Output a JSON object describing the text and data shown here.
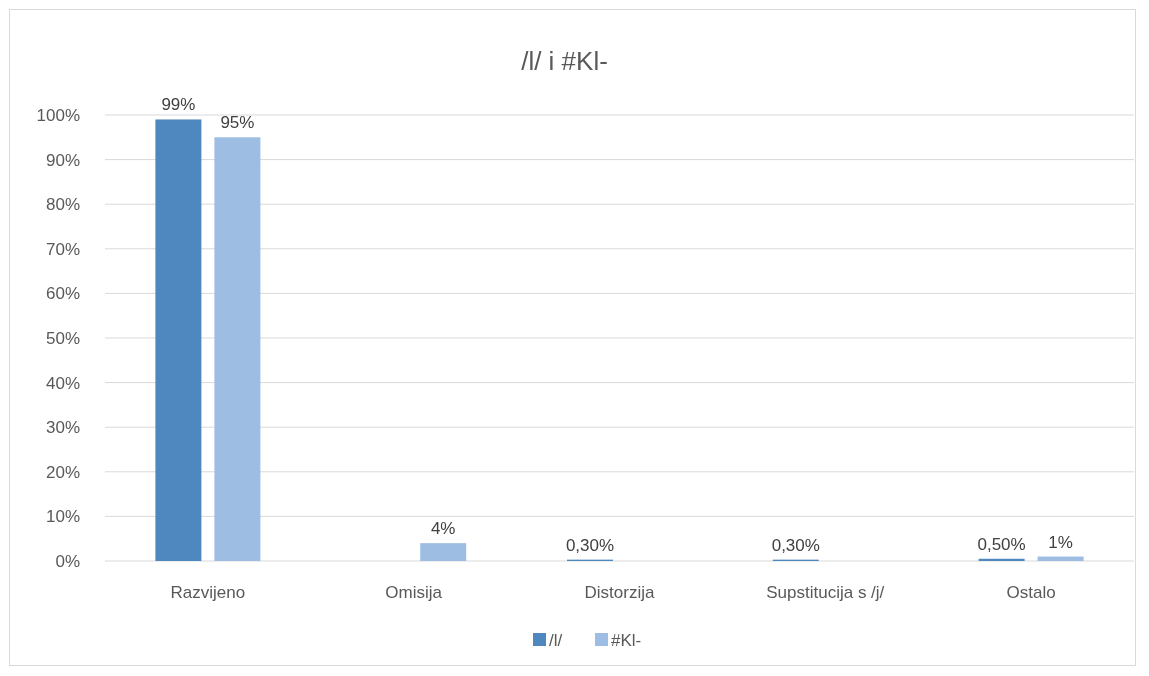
{
  "chart_data": {
    "type": "bar",
    "title": "/l/ i #Kl-",
    "categories": [
      "Razvijeno",
      "Omisija",
      "Distorzija",
      "Supstitucija s /j/",
      "Ostalo"
    ],
    "series": [
      {
        "name": "/l/",
        "color": "#4f88bf",
        "values": [
          99,
          null,
          0.3,
          0.3,
          0.5
        ],
        "value_labels": [
          "99%",
          null,
          "0,30%",
          "0,30%",
          "0,50%"
        ]
      },
      {
        "name": "#Kl-",
        "color": "#9dbde2",
        "values": [
          95,
          4,
          null,
          null,
          1
        ],
        "value_labels": [
          "95%",
          "4%",
          null,
          null,
          "1%"
        ]
      }
    ],
    "ylim": [
      0,
      100
    ],
    "yticks": [
      {
        "value": 0,
        "label": "0%"
      },
      {
        "value": 10,
        "label": "10%"
      },
      {
        "value": 20,
        "label": "20%"
      },
      {
        "value": 30,
        "label": "30%"
      },
      {
        "value": 40,
        "label": "40%"
      },
      {
        "value": 50,
        "label": "50%"
      },
      {
        "value": 60,
        "label": "60%"
      },
      {
        "value": 70,
        "label": "70%"
      },
      {
        "value": 80,
        "label": "80%"
      },
      {
        "value": 90,
        "label": "90%"
      },
      {
        "value": 100,
        "label": "100%"
      }
    ],
    "grid": "y",
    "legend": "bottom"
  }
}
